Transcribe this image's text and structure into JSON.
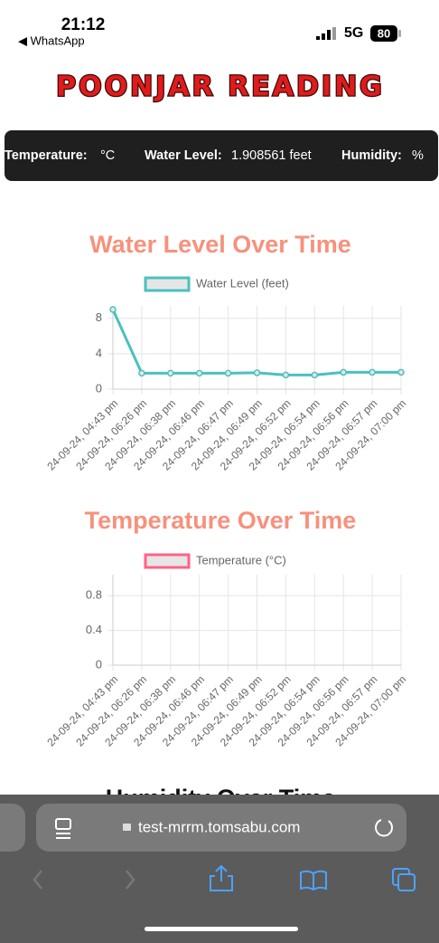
{
  "status_bar": {
    "time": "21:12",
    "back_app": "◀ WhatsApp",
    "network": "5G",
    "battery": "80"
  },
  "header": {
    "title": "POONJAR READING"
  },
  "info_bar": [
    {
      "label": "Temperature:",
      "value": "°C"
    },
    {
      "label": "Water Level:",
      "value": "1.908561 feet"
    },
    {
      "label": "Humidity:",
      "value": "%"
    }
  ],
  "chart_data": [
    {
      "type": "line",
      "title": "Water Level Over Time",
      "categories": [
        "24-09-24, 04:43 pm",
        "24-09-24, 06:26 pm",
        "24-09-24, 06:38 pm",
        "24-09-24, 06:46 pm",
        "24-09-24, 06:47 pm",
        "24-09-24, 06:49 pm",
        "24-09-24, 06:52 pm",
        "24-09-24, 06:54 pm",
        "24-09-24, 06:56 pm",
        "24-09-24, 06:57 pm",
        "24-09-24, 07:00 pm"
      ],
      "series": [
        {
          "name": "Water Level (feet)",
          "color": "#4bc0c0",
          "values": [
            9,
            1.8,
            1.8,
            1.8,
            1.8,
            1.85,
            1.6,
            1.6,
            1.9,
            1.9,
            1.908561
          ]
        }
      ],
      "ylim": [
        0,
        9
      ],
      "yticks": [
        0,
        4,
        8
      ],
      "grid": true
    },
    {
      "type": "line",
      "title": "Temperature Over Time",
      "categories": [
        "24-09-24, 04:43 pm",
        "24-09-24, 06:26 pm",
        "24-09-24, 06:38 pm",
        "24-09-24, 06:46 pm",
        "24-09-24, 06:47 pm",
        "24-09-24, 06:49 pm",
        "24-09-24, 06:52 pm",
        "24-09-24, 06:54 pm",
        "24-09-24, 06:56 pm",
        "24-09-24, 06:57 pm",
        "24-09-24, 07:00 pm"
      ],
      "series": [
        {
          "name": "Temperature (°C)",
          "color": "#ff6384",
          "values": [
            null,
            null,
            null,
            null,
            null,
            null,
            null,
            null,
            null,
            null,
            null
          ]
        }
      ],
      "ylim": [
        0,
        1
      ],
      "yticks": [
        0,
        0.4,
        0.8
      ],
      "grid": true
    }
  ],
  "partial_heading": "Humidity Over Time",
  "browser": {
    "url": "test-mrrm.tomsabu.com"
  }
}
